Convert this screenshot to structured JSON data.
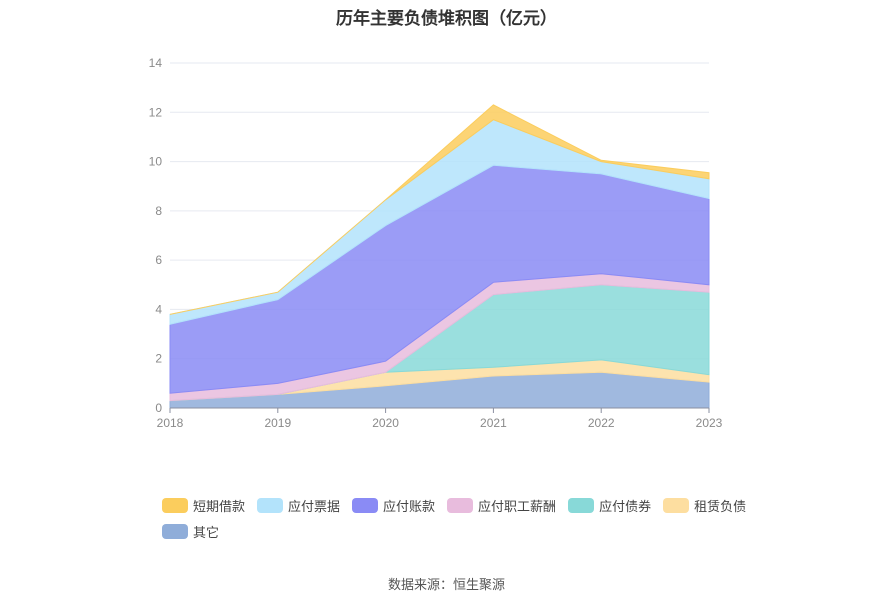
{
  "chart_data": {
    "type": "area",
    "title": "历年主要负债堆积图（亿元）",
    "categories": [
      "2018",
      "2019",
      "2020",
      "2021",
      "2022",
      "2023"
    ],
    "ylim": [
      0,
      14
    ],
    "yticks": [
      "0",
      "2",
      "4",
      "6",
      "8",
      "10",
      "12",
      "14"
    ],
    "grid": true,
    "legend_position": "bottom",
    "series": [
      {
        "name": "其它",
        "color": "#8fadd9",
        "values": [
          0.3,
          0.55,
          0.9,
          1.3,
          1.45,
          1.05
        ]
      },
      {
        "name": "租赁负债",
        "color": "#fddea0",
        "values": [
          0.0,
          0.0,
          0.55,
          0.35,
          0.5,
          0.3
        ]
      },
      {
        "name": "应付债券",
        "color": "#88d9d8",
        "values": [
          0.0,
          0.0,
          0.0,
          2.95,
          3.05,
          3.35
        ]
      },
      {
        "name": "应付职工薪酬",
        "color": "#e8bcdd",
        "values": [
          0.3,
          0.45,
          0.45,
          0.5,
          0.45,
          0.3
        ]
      },
      {
        "name": "应付账款",
        "color": "#8a8bf5",
        "values": [
          2.8,
          3.4,
          5.5,
          4.75,
          4.05,
          3.5
        ]
      },
      {
        "name": "应付票据",
        "color": "#b3e3fb",
        "values": [
          0.4,
          0.3,
          1.05,
          1.85,
          0.5,
          0.8
        ]
      },
      {
        "name": "短期借款",
        "color": "#fbcd5d",
        "values": [
          0.0,
          0.0,
          0.0,
          0.6,
          0.05,
          0.25
        ]
      }
    ],
    "legend_order": [
      "短期借款",
      "应付票据",
      "应付账款",
      "应付职工薪酬",
      "应付债券",
      "租赁负债",
      "其它"
    ]
  },
  "source": "数据来源：恒生聚源"
}
